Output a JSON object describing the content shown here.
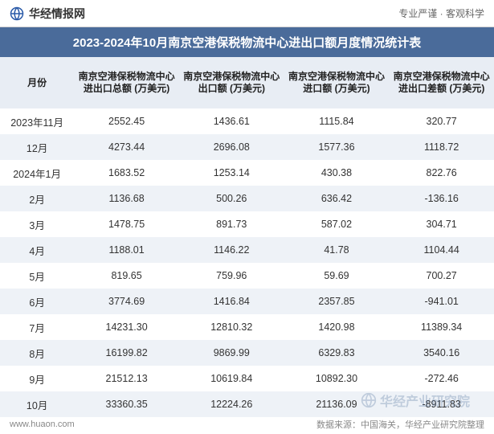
{
  "header": {
    "logo_text": "华经情报网",
    "tagline": "专业严谨 · 客观科学"
  },
  "title": "2023-2024年10月南京空港保税物流中心进出口额月度情况统计表",
  "table": {
    "columns": [
      "月份",
      "南京空港保税物流中心进出口总额\n(万美元)",
      "南京空港保税物流中心出口额\n(万美元)",
      "南京空港保税物流中心进口额\n(万美元)",
      "南京空港保税物流中心进出口差额\n(万美元)"
    ],
    "rows": [
      [
        "2023年11月",
        "2552.45",
        "1436.61",
        "1115.84",
        "320.77"
      ],
      [
        "12月",
        "4273.44",
        "2696.08",
        "1577.36",
        "1118.72"
      ],
      [
        "2024年1月",
        "1683.52",
        "1253.14",
        "430.38",
        "822.76"
      ],
      [
        "2月",
        "1136.68",
        "500.26",
        "636.42",
        "-136.16"
      ],
      [
        "3月",
        "1478.75",
        "891.73",
        "587.02",
        "304.71"
      ],
      [
        "4月",
        "1188.01",
        "1146.22",
        "41.78",
        "1104.44"
      ],
      [
        "5月",
        "819.65",
        "759.96",
        "59.69",
        "700.27"
      ],
      [
        "6月",
        "3774.69",
        "1416.84",
        "2357.85",
        "-941.01"
      ],
      [
        "7月",
        "14231.30",
        "12810.32",
        "1420.98",
        "11389.34"
      ],
      [
        "8月",
        "16199.82",
        "9869.99",
        "6329.83",
        "3540.16"
      ],
      [
        "9月",
        "21512.13",
        "10619.84",
        "10892.30",
        "-272.46"
      ],
      [
        "10月",
        "33360.35",
        "12224.26",
        "21136.09",
        "-8911.83"
      ]
    ]
  },
  "footer": {
    "site": "www.huaon.com",
    "source": "数据来源：中国海关，华经产业研究院整理"
  },
  "watermark": "华经产业研究院",
  "style": {
    "title_bg": "#4a6b9a",
    "title_fg": "#ffffff",
    "header_bg": "#e8edf4",
    "row_alt_bg": "#eef2f7",
    "row_bg": "#ffffff",
    "text_color": "#333333",
    "logo_color": "#2a5aa8",
    "footer_color": "#888888",
    "title_fontsize": 15,
    "header_fontsize": 12,
    "cell_fontsize": 12.5,
    "footer_fontsize": 11
  }
}
